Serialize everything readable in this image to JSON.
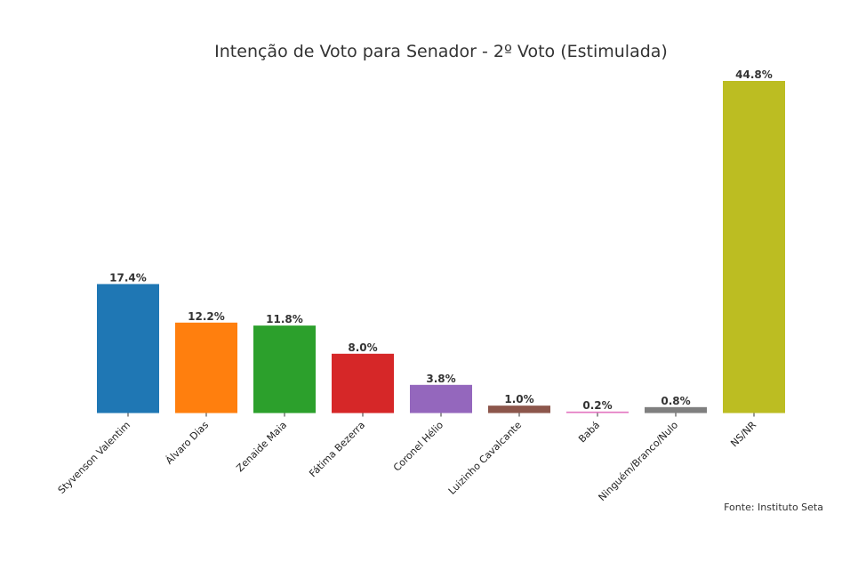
{
  "chart_data": {
    "type": "bar",
    "title": "Intenção de Voto para Senador - 2º Voto (Estimulada)",
    "xlabel": "",
    "ylabel": "",
    "ylim": [
      0,
      44.8
    ],
    "grid": false,
    "categories": [
      "Styvenson Valentim",
      "Álvaro Dias",
      "Zenaide Maia",
      "Fátima Bezerra",
      "Coronel Hélio",
      "Luizinho Cavalcante",
      "Babá",
      "Ninguém/Branco/Nulo",
      "NS/NR"
    ],
    "values": [
      17.4,
      12.2,
      11.8,
      8.0,
      3.8,
      1.0,
      0.2,
      0.8,
      44.8
    ],
    "value_labels": [
      "17.4%",
      "12.2%",
      "11.8%",
      "8.0%",
      "3.8%",
      "1.0%",
      "0.2%",
      "0.8%",
      "44.8%"
    ],
    "colors": [
      "#1f77b4",
      "#ff7f0e",
      "#2ca02c",
      "#d62728",
      "#9467bd",
      "#8c564b",
      "#e377c2",
      "#7f7f7f",
      "#bcbd22"
    ]
  },
  "source": "Fonte: Instituto Seta"
}
